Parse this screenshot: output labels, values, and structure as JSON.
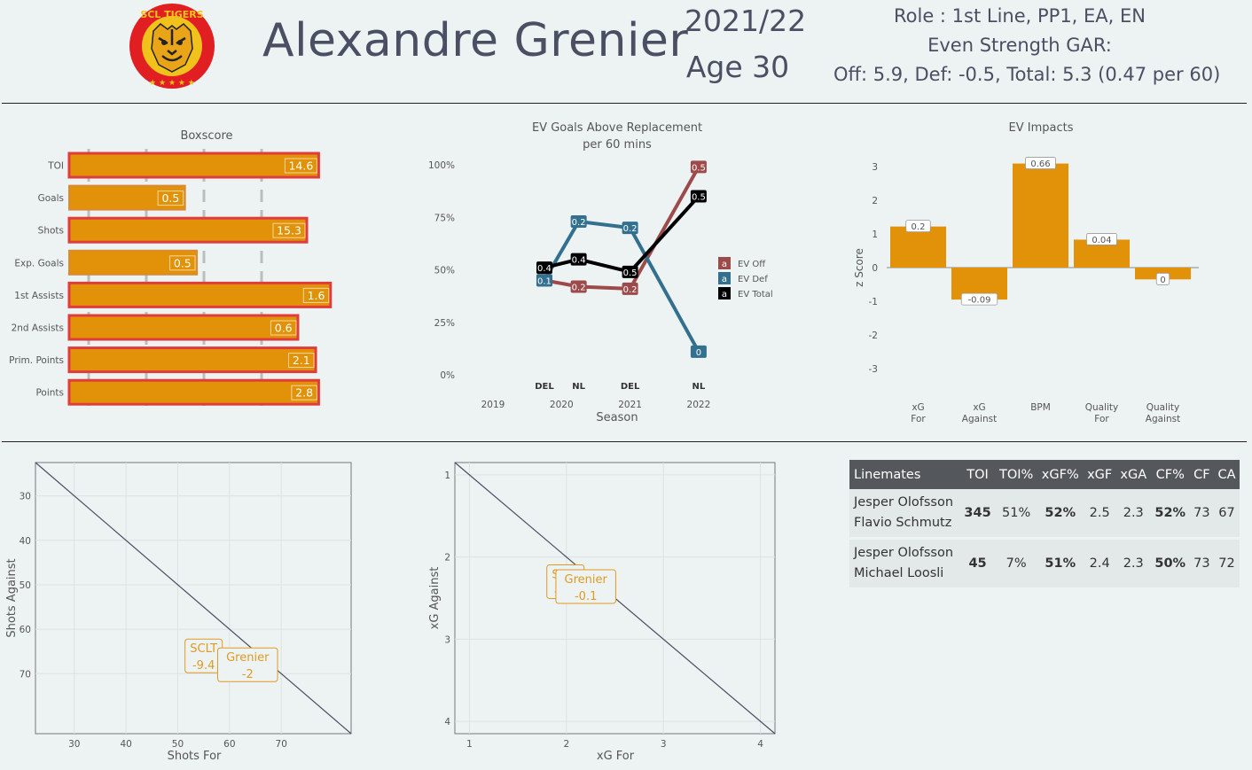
{
  "header": {
    "player_name": "Alexandre Grenier",
    "season": "2021/22",
    "age": "Age 30",
    "role_line": "Role : 1st Line, PP1, EA, EN",
    "gar_heading": "Even Strength GAR:",
    "gar_line": "Off: 5.9,  Def: -0.5, Total: 5.3 (0.47 per 60)",
    "logo_text": "SCL TIGERS"
  },
  "colors": {
    "orange": "#e29208",
    "red_border": "#e03c3c",
    "ev_off": "#9c4a4a",
    "ev_def": "#33708f",
    "ev_total": "#000000",
    "label_orange": "#e09a22"
  },
  "chart_data": [
    {
      "type": "bar",
      "title": "Boxscore",
      "categories": [
        "TOI",
        "Goals",
        "Shots",
        "Exp. Goals",
        "1st Assists",
        "2nd Assists",
        "Prim. Points",
        "Points"
      ],
      "values": [
        14.6,
        0.5,
        15.3,
        0.5,
        1.6,
        0.6,
        2.1,
        2.8
      ],
      "percentile": [
        0.84,
        0.39,
        0.8,
        0.43,
        0.88,
        0.77,
        0.83,
        0.84
      ],
      "red_border": [
        true,
        false,
        true,
        false,
        true,
        true,
        true,
        true
      ],
      "grid": true
    },
    {
      "type": "line",
      "title": "EV Goals Above Replacement",
      "subtitle": "per 60 mins",
      "xlabel": "Season",
      "x_ticks": [
        "2019",
        "2020",
        "2021",
        "2022"
      ],
      "x_range": [
        2019,
        2022
      ],
      "y_ticks": [
        "0%",
        "25%",
        "50%",
        "75%",
        "100%"
      ],
      "ylim": [
        0,
        100
      ],
      "league_labels": [
        {
          "x": 2019.75,
          "text": "DEL"
        },
        {
          "x": 2020.25,
          "text": "NL"
        },
        {
          "x": 2021.0,
          "text": "DEL"
        },
        {
          "x": 2022.0,
          "text": "NL"
        }
      ],
      "series": [
        {
          "name": "EV Off",
          "color": "#9c4a4a",
          "x": [
            2019.75,
            2020.25,
            2021.0,
            2022.0
          ],
          "y": [
            45,
            42,
            41,
            99
          ],
          "labels": [
            "0.1",
            "0.2",
            "0.2",
            "0.5"
          ]
        },
        {
          "name": "EV Def",
          "color": "#33708f",
          "x": [
            2019.75,
            2020.25,
            2021.0,
            2022.0
          ],
          "y": [
            45,
            73,
            70,
            11
          ],
          "labels": [
            "0.1",
            "0.2",
            "0.2",
            "0"
          ]
        },
        {
          "name": "EV Total",
          "color": "#000000",
          "x": [
            2019.75,
            2020.25,
            2021.0,
            2022.0
          ],
          "y": [
            51,
            55,
            49,
            85
          ],
          "labels": [
            "0.4",
            "0.4",
            "0.5",
            "0.5"
          ]
        }
      ],
      "legend_position": "right",
      "legend_swatch_text": "a"
    },
    {
      "type": "bar",
      "title": "EV Impacts",
      "ylabel": "z Score",
      "categories": [
        "xG For",
        "xG Against",
        "BPM",
        "Quality For",
        "Quality Against"
      ],
      "values": [
        1.22,
        -0.95,
        3.09,
        0.83,
        -0.35
      ],
      "labels": [
        "0.2",
        "-0.09",
        "0.66",
        "0.04",
        "0"
      ],
      "ylim": [
        -3.4,
        3.4
      ],
      "y_ticks": [
        -3,
        -2,
        -1,
        0,
        1,
        2,
        3
      ]
    },
    {
      "type": "scatter",
      "xlabel": "Shots For",
      "ylabel": "Shots Against",
      "x_ticks": [
        30,
        40,
        50,
        60,
        70
      ],
      "y_ticks": [
        30,
        40,
        50,
        60,
        70
      ],
      "x_range": [
        22.5,
        83.5
      ],
      "y_range": [
        22.5,
        83.5
      ],
      "y_reversed": true,
      "diagonal": true,
      "points": [
        {
          "name": "SCLT",
          "value": "-9.4",
          "x": 55.0,
          "y": 66.0
        },
        {
          "name": "Grenier",
          "value": "-2",
          "x": 63.5,
          "y": 68.0
        }
      ]
    },
    {
      "type": "scatter",
      "xlabel": "xG For",
      "ylabel": "xG Against",
      "x_ticks": [
        1,
        2,
        3,
        4
      ],
      "y_ticks": [
        1,
        2,
        3,
        4
      ],
      "x_range": [
        0.85,
        4.15
      ],
      "y_range": [
        0.85,
        4.15
      ],
      "y_reversed": true,
      "diagonal": true,
      "points": [
        {
          "name": "SCLT",
          "value": "-0.4",
          "x": 1.99,
          "y": 2.3
        },
        {
          "name": "Grenier",
          "value": "-0.1",
          "x": 2.2,
          "y": 2.36
        }
      ]
    }
  ],
  "linemates_table": {
    "headers": [
      "Linemates",
      "TOI",
      "TOI%",
      "xGF%",
      "xGF",
      "xGA",
      "CF%",
      "CF",
      "CA"
    ],
    "rows": [
      {
        "name1": "Jesper Olofsson",
        "name2": "Flavio Schmutz",
        "toi": "345",
        "toi_pct": "51%",
        "xgf_pct": "52%",
        "xgf": "2.5",
        "xga": "2.3",
        "cf_pct": "52%",
        "cf": "73",
        "ca": "67"
      },
      {
        "name1": "Jesper Olofsson",
        "name2": "Michael Loosli",
        "toi": "45",
        "toi_pct": "7%",
        "xgf_pct": "51%",
        "xgf": "2.4",
        "xga": "2.3",
        "cf_pct": "50%",
        "cf": "73",
        "ca": "72"
      }
    ]
  }
}
